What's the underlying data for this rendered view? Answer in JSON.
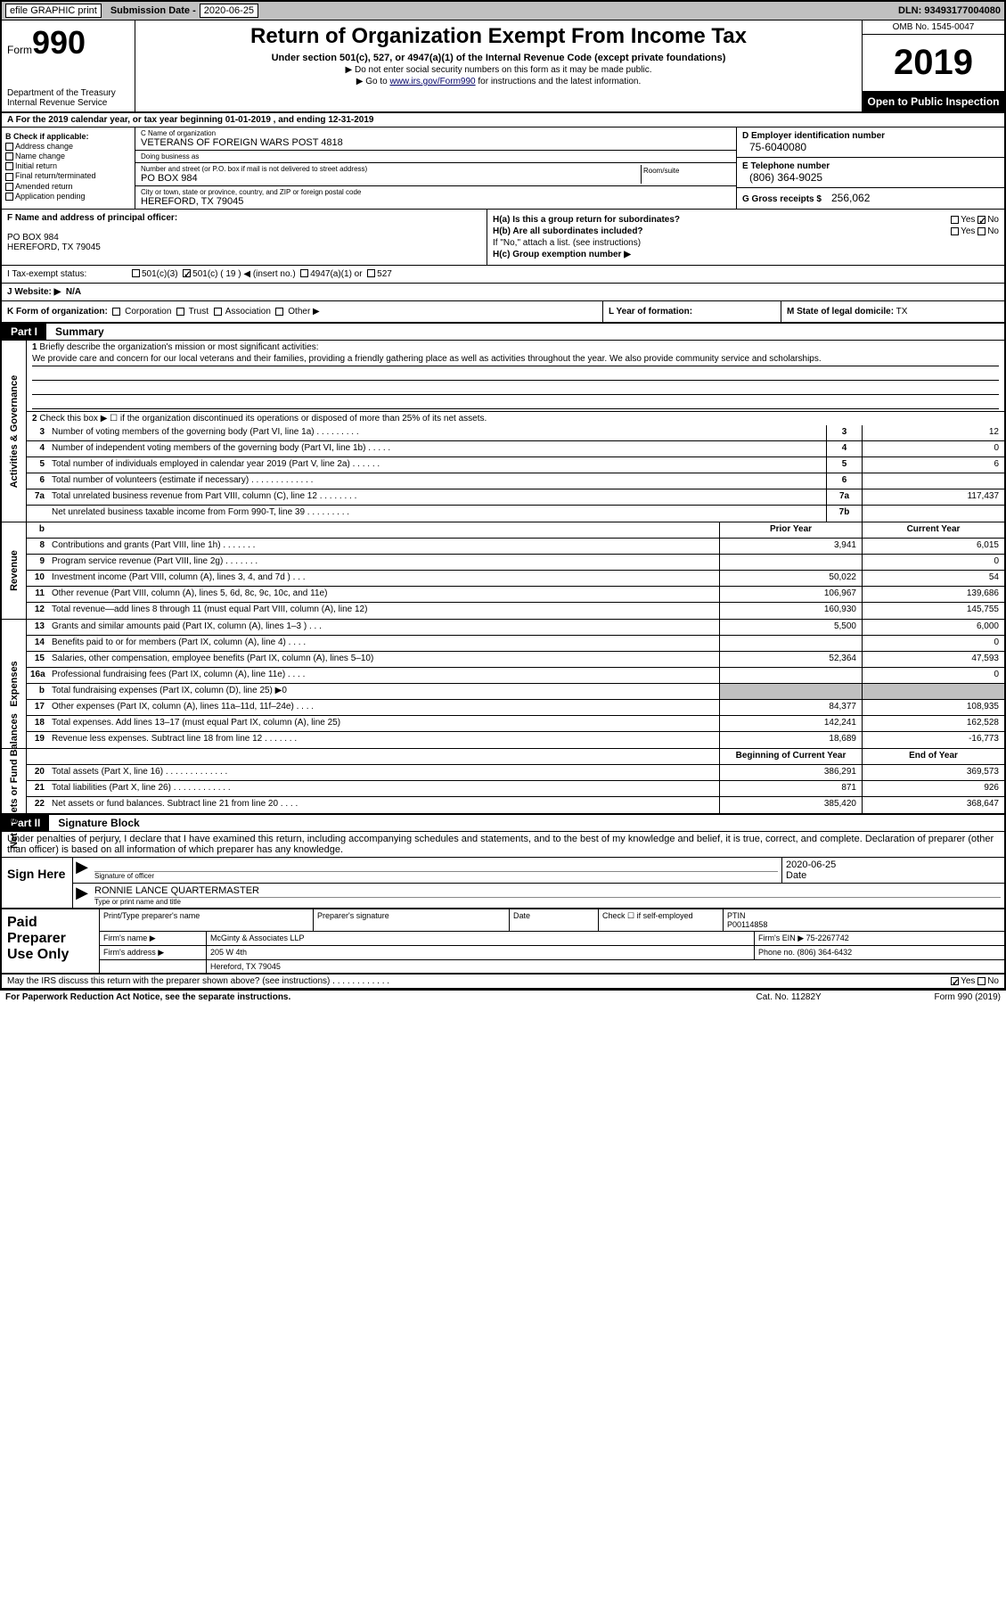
{
  "topbar": {
    "efile": "efile GRAPHIC print",
    "subdate_label": "Submission Date -",
    "subdate": "2020-06-25",
    "dln": "DLN: 93493177004080"
  },
  "header": {
    "form_word": "Form",
    "form_num": "990",
    "dept": "Department of the Treasury\nInternal Revenue Service",
    "title": "Return of Organization Exempt From Income Tax",
    "sub": "Under section 501(c), 527, or 4947(a)(1) of the Internal Revenue Code (except private foundations)",
    "note1": "▶ Do not enter social security numbers on this form as it may be made public.",
    "note2_pre": "▶ Go to ",
    "note2_link": "www.irs.gov/Form990",
    "note2_post": " for instructions and the latest information.",
    "omb": "OMB No. 1545-0047",
    "year": "2019",
    "inspection": "Open to Public Inspection"
  },
  "lineA": "A For the 2019 calendar year, or tax year beginning 01-01-2019   , and ending 12-31-2019",
  "boxB": {
    "title": "B Check if applicable:",
    "items": [
      "Address change",
      "Name change",
      "Initial return",
      "Final return/terminated",
      "Amended return",
      "Application pending"
    ]
  },
  "boxC": {
    "name_lbl": "C Name of organization",
    "name": "VETERANS OF FOREIGN WARS POST 4818",
    "dba_lbl": "Doing business as",
    "dba": "",
    "street_lbl": "Number and street (or P.O. box if mail is not delivered to street address)",
    "street": "PO BOX 984",
    "room_lbl": "Room/suite",
    "city_lbl": "City or town, state or province, country, and ZIP or foreign postal code",
    "city": "HEREFORD, TX  79045"
  },
  "boxD": {
    "ein_lbl": "D Employer identification number",
    "ein": "75-6040080",
    "tel_lbl": "E Telephone number",
    "tel": "(806) 364-9025",
    "gross_lbl": "G Gross receipts $",
    "gross": "256,062"
  },
  "boxF": {
    "lbl": "F Name and address of principal officer:",
    "addr1": "PO BOX 984",
    "addr2": "HEREFORD, TX  79045"
  },
  "boxH": {
    "ha": "H(a)  Is this a group return for subordinates?",
    "hb": "H(b)  Are all subordinates included?",
    "hb_note": "If \"No,\" attach a list. (see instructions)",
    "hc": "H(c)  Group exemption number ▶",
    "yes": "Yes",
    "no": "No"
  },
  "taxstatus": {
    "lbl": "I   Tax-exempt status:",
    "c3": "501(c)(3)",
    "cinsert": "501(c) ( 19 ) ◀ (insert no.)",
    "a1": "4947(a)(1) or",
    "s527": "527"
  },
  "rowJ": {
    "lbl": "J   Website: ▶",
    "val": "N/A"
  },
  "rowK": {
    "lbl": "K Form of organization:",
    "opts": [
      "Corporation",
      "Trust",
      "Association",
      "Other ▶"
    ]
  },
  "rowL": {
    "lbl": "L Year of formation:"
  },
  "rowM": {
    "lbl": "M State of legal domicile:",
    "val": "TX"
  },
  "part1": {
    "num": "Part I",
    "title": "Summary"
  },
  "mission": {
    "num": "1",
    "lbl": "Briefly describe the organization's mission or most significant activities:",
    "text": "We provide care and concern for our local veterans and their families, providing a friendly gathering place as well as activities throughout the year. We also provide community service and scholarships."
  },
  "line2": {
    "num": "2",
    "text": "Check this box ▶ ☐ if the organization discontinued its operations or disposed of more than 25% of its net assets."
  },
  "govrows": [
    {
      "n": "3",
      "d": "Number of voting members of the governing body (Part VI, line 1a)  .   .   .   .   .   .   .   .   .",
      "b": "3",
      "v": "12"
    },
    {
      "n": "4",
      "d": "Number of independent voting members of the governing body (Part VI, line 1b)  .   .   .   .   .",
      "b": "4",
      "v": "0"
    },
    {
      "n": "5",
      "d": "Total number of individuals employed in calendar year 2019 (Part V, line 2a)  .   .   .   .   .   .",
      "b": "5",
      "v": "6"
    },
    {
      "n": "6",
      "d": "Total number of volunteers (estimate if necessary)   .   .   .   .   .   .   .   .   .   .   .   .   .",
      "b": "6",
      "v": ""
    },
    {
      "n": "7a",
      "d": "Total unrelated business revenue from Part VIII, column (C), line 12  .   .   .   .   .   .   .   .",
      "b": "7a",
      "v": "117,437"
    },
    {
      "n": "",
      "d": "Net unrelated business taxable income from Form 990-T, line 39   .   .   .   .   .   .   .   .   .",
      "b": "7b",
      "v": ""
    }
  ],
  "revhead": {
    "b": "b",
    "p": "Prior Year",
    "c": "Current Year"
  },
  "revrows": [
    {
      "n": "8",
      "d": "Contributions and grants (Part VIII, line 1h)   .   .   .   .   .   .   .",
      "p": "3,941",
      "c": "6,015"
    },
    {
      "n": "9",
      "d": "Program service revenue (Part VIII, line 2g)   .   .   .   .   .   .   .",
      "p": "",
      "c": "0"
    },
    {
      "n": "10",
      "d": "Investment income (Part VIII, column (A), lines 3, 4, and 7d )    .   .   .",
      "p": "50,022",
      "c": "54"
    },
    {
      "n": "11",
      "d": "Other revenue (Part VIII, column (A), lines 5, 6d, 8c, 9c, 10c, and 11e)",
      "p": "106,967",
      "c": "139,686"
    },
    {
      "n": "12",
      "d": "Total revenue—add lines 8 through 11 (must equal Part VIII, column (A), line 12)",
      "p": "160,930",
      "c": "145,755"
    }
  ],
  "exprows": [
    {
      "n": "13",
      "d": "Grants and similar amounts paid (Part IX, column (A), lines 1–3 )   .   .   .",
      "p": "5,500",
      "c": "6,000"
    },
    {
      "n": "14",
      "d": "Benefits paid to or for members (Part IX, column (A), line 4)   .   .   .   .",
      "p": "",
      "c": "0"
    },
    {
      "n": "15",
      "d": "Salaries, other compensation, employee benefits (Part IX, column (A), lines 5–10)",
      "p": "52,364",
      "c": "47,593"
    },
    {
      "n": "16a",
      "d": "Professional fundraising fees (Part IX, column (A), line 11e)   .   .   .   .",
      "p": "",
      "c": "0"
    },
    {
      "n": "b",
      "d": "Total fundraising expenses (Part IX, column (D), line 25) ▶0",
      "p": "",
      "c": "",
      "gray": true
    },
    {
      "n": "17",
      "d": "Other expenses (Part IX, column (A), lines 11a–11d, 11f–24e)   .   .   .   .",
      "p": "84,377",
      "c": "108,935"
    },
    {
      "n": "18",
      "d": "Total expenses. Add lines 13–17 (must equal Part IX, column (A), line 25)",
      "p": "142,241",
      "c": "162,528"
    },
    {
      "n": "19",
      "d": "Revenue less expenses. Subtract line 18 from line 12  .   .   .   .   .   .   .",
      "p": "18,689",
      "c": "-16,773"
    }
  ],
  "nethead": {
    "p": "Beginning of Current Year",
    "c": "End of Year"
  },
  "netrows": [
    {
      "n": "20",
      "d": "Total assets (Part X, line 16)  .   .   .   .   .   .   .   .   .   .   .   .   .",
      "p": "386,291",
      "c": "369,573"
    },
    {
      "n": "21",
      "d": "Total liabilities (Part X, line 26)  .   .   .   .   .   .   .   .   .   .   .   .",
      "p": "871",
      "c": "926"
    },
    {
      "n": "22",
      "d": "Net assets or fund balances. Subtract line 21 from line 20   .   .   .   .",
      "p": "385,420",
      "c": "368,647"
    }
  ],
  "part2": {
    "num": "Part II",
    "title": "Signature Block"
  },
  "sigdecl": "Under penalties of perjury, I declare that I have examined this return, including accompanying schedules and statements, and to the best of my knowledge and belief, it is true, correct, and complete. Declaration of preparer (other than officer) is based on all information of which preparer has any knowledge.",
  "sign": {
    "here": "Sign Here",
    "officer_lbl": "Signature of officer",
    "date_lbl": "Date",
    "date": "2020-06-25",
    "name": "RONNIE LANCE QUARTERMASTER",
    "name_lbl": "Type or print name and title"
  },
  "prep": {
    "left": "Paid Preparer Use Only",
    "h1": "Print/Type preparer's name",
    "h2": "Preparer's signature",
    "h3": "Date",
    "h4": "Check ☐ if self-employed",
    "h5_lbl": "PTIN",
    "h5": "P00114858",
    "firm_lbl": "Firm's name    ▶",
    "firm": "McGinty & Associates LLP",
    "ein_lbl": "Firm's EIN ▶",
    "ein": "75-2267742",
    "addr_lbl": "Firm's address ▶",
    "addr1": "205 W 4th",
    "addr2": "Hereford, TX  79045",
    "phone_lbl": "Phone no.",
    "phone": "(806) 364-6432"
  },
  "footer": {
    "discuss": "May the IRS discuss this return with the preparer shown above? (see instructions)   .   .   .   .   .   .   .   .   .   .   .   .",
    "yes": "Yes",
    "no": "No",
    "paperwork": "For Paperwork Reduction Act Notice, see the separate instructions.",
    "cat": "Cat. No. 11282Y",
    "form": "Form 990 (2019)"
  },
  "sidelabels": {
    "gov": "Activities & Governance",
    "rev": "Revenue",
    "exp": "Expenses",
    "net": "Net Assets or Fund Balances"
  }
}
